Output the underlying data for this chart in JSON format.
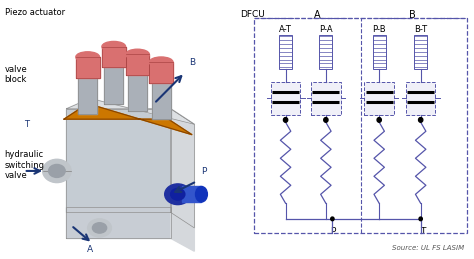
{
  "bg_color": "#ffffff",
  "source_text": "Source: UL FS LASIM",
  "dfcu_cols": [
    "A-T",
    "P-A",
    "P-B",
    "B-T"
  ],
  "diagram_color": "#5555aa",
  "left_bg": "#e8e8e8",
  "arrow_color": "#1a3575",
  "piezo_pink": "#d97070",
  "piezo_stem": "#aab0b8",
  "orange_ring": "#cc7700",
  "body_gray": "#b8bec5",
  "body_light": "#c8cdd3",
  "blue_conn": "#2244bb",
  "silver": "#c0c5ca"
}
